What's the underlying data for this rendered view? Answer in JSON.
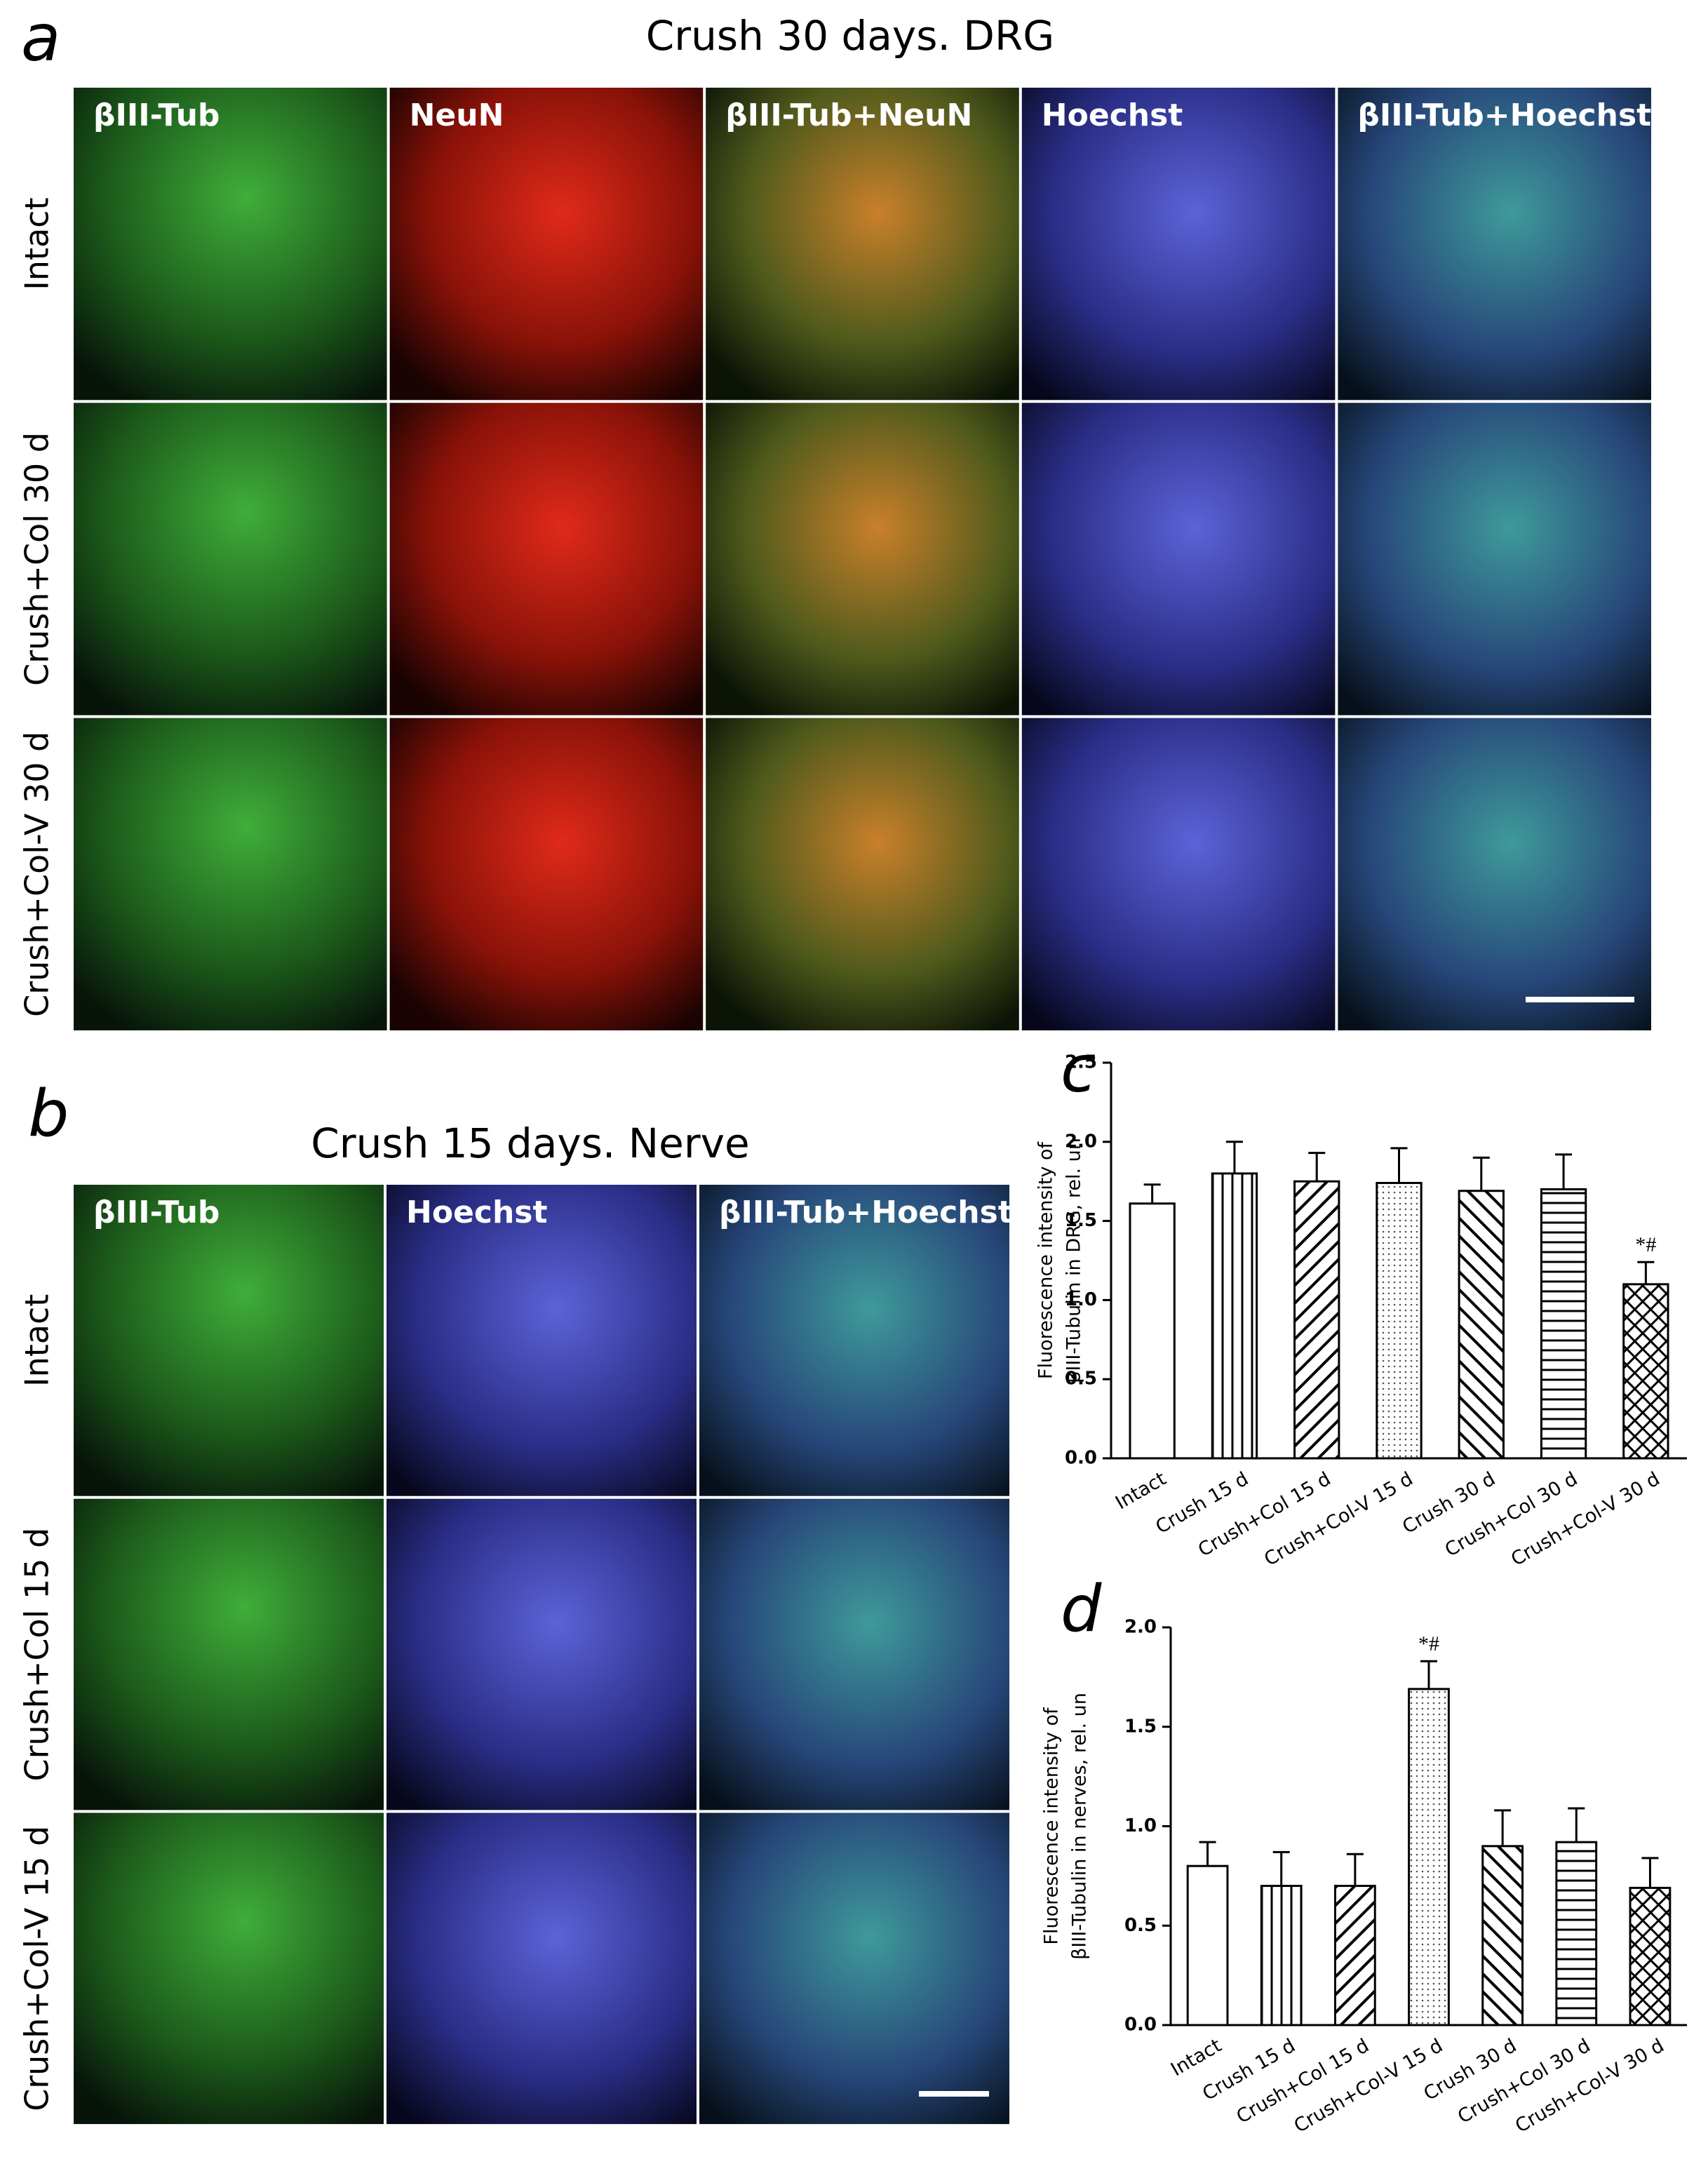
{
  "figure": {
    "panel_a": {
      "label": "a",
      "title": "Crush 30 days. DRG",
      "columns": [
        "βIII-Tub",
        "NeuN",
        "βIII-Tub+NeuN",
        "Hoechst",
        "βIII-Tub+Hoechst"
      ],
      "rows": [
        "Intact",
        "Crush+Col 30 d",
        "Crush+Col-V 30 d"
      ]
    },
    "panel_b": {
      "label": "b",
      "title": "Crush 15 days. Nerve",
      "columns": [
        "βIII-Tub",
        "Hoechst",
        "βIII-Tub+Hoechst"
      ],
      "rows": [
        "Intact",
        "Crush+Col 15 d",
        "Crush+Col-V 15 d"
      ]
    }
  },
  "chart_data": [
    {
      "type": "bar",
      "label": "c",
      "y_label": [
        "Fluorescence intensity of",
        "βIII-Tubulin in  DRG, rel. un"
      ],
      "categories": [
        "Intact",
        "Crush 15 d",
        "Crush+Col 15 d",
        "Crush+Col-V 15 d",
        "Crush 30 d",
        "Crush+Col 30 d",
        "Crush+Col-V 30 d"
      ],
      "values": [
        1.61,
        1.8,
        1.75,
        1.74,
        1.69,
        1.7,
        1.1
      ],
      "error": [
        0.12,
        0.2,
        0.18,
        0.22,
        0.21,
        0.22,
        0.14
      ],
      "patterns": [
        "none",
        "vertical",
        "diagonal-up",
        "dots",
        "diagonal-down",
        "horizontal",
        "cross"
      ],
      "color": "#ffffff",
      "edge_color": "#000000",
      "ylim": [
        0,
        2.5
      ],
      "yticks": [
        {
          "value": 0,
          "label": "0.0"
        },
        0.5,
        {
          "value": 1,
          "label": "1.0"
        },
        1.5,
        {
          "value": 2,
          "label": "2.0"
        },
        2.5
      ],
      "annotations": [
        {
          "category": "Crush+Col-V 30 d",
          "text": "*#"
        }
      ]
    },
    {
      "type": "bar",
      "label": "d",
      "y_label": [
        "Fluorescence intensity of",
        "βIII-Tubulin in  nerves, rel. un"
      ],
      "categories": [
        "Intact",
        "Crush 15 d",
        "Crush+Col 15 d",
        "Crush+Col-V 15 d",
        "Crush 30 d",
        "Crush+Col 30 d",
        "Crush+Col-V 30 d"
      ],
      "values": [
        0.8,
        0.7,
        0.7,
        1.69,
        0.9,
        0.92,
        0.69
      ],
      "error": [
        0.12,
        0.17,
        0.16,
        0.14,
        0.18,
        0.17,
        0.15
      ],
      "patterns": [
        "none",
        "vertical",
        "diagonal-up",
        "dots",
        "diagonal-down",
        "horizontal",
        "cross"
      ],
      "color": "#ffffff",
      "edge_color": "#000000",
      "ylim": [
        0,
        2
      ],
      "yticks": [
        {
          "value": 0,
          "label": "0.0"
        },
        0.5,
        {
          "value": 1,
          "label": "1.0"
        },
        1.5,
        {
          "value": 2,
          "label": "2.0"
        }
      ],
      "annotations": [
        {
          "category": "Crush+Col-V 15 d",
          "text": "*#"
        }
      ]
    }
  ]
}
